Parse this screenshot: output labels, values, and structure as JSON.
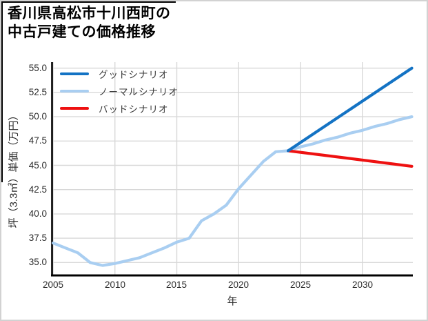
{
  "title": {
    "line1": "香川県高松市十川西町の",
    "line2": "中古戸建ての価格推移"
  },
  "chart_data": {
    "type": "line",
    "title": "香川県高松市十川西町の中古戸建ての価格推移",
    "xlabel": "年",
    "ylabel": "坪（3.3㎡）単価（万円）",
    "xlim": [
      2005,
      2034
    ],
    "ylim": [
      33.6,
      55.6
    ],
    "grid": true,
    "legend_position": "upper-left",
    "x_ticks": [
      2005,
      2010,
      2015,
      2020,
      2025,
      2030
    ],
    "x_tick_labels": [
      "2005",
      "2010",
      "2015",
      "2020",
      "2025",
      "2030"
    ],
    "y_ticks": [
      35.0,
      37.5,
      40.0,
      42.5,
      45.0,
      47.5,
      50.0,
      52.5,
      55.0
    ],
    "y_tick_labels": [
      "35.0",
      "37.5",
      "40.0",
      "42.5",
      "45.0",
      "47.5",
      "50.0",
      "52.5",
      "55.0"
    ],
    "colors": {
      "good": "#1473c4",
      "normal": "#a9cef1",
      "bad": "#ee1111",
      "grid": "#d8d8d8",
      "axis": "#000000"
    },
    "legend": [
      {
        "key": "good",
        "label": "グッドシナリオ",
        "color": "#1473c4"
      },
      {
        "key": "normal",
        "label": "ノーマルシナリオ",
        "color": "#a9cef1"
      },
      {
        "key": "bad",
        "label": "バッドシナリオ",
        "color": "#ee1111"
      }
    ],
    "series": [
      {
        "key": "normal",
        "name": "ノーマルシナリオ",
        "color": "#a9cef1",
        "x": [
          2005,
          2006,
          2007,
          2008,
          2009,
          2010,
          2011,
          2012,
          2013,
          2014,
          2015,
          2016,
          2017,
          2018,
          2019,
          2020,
          2021,
          2022,
          2023,
          2024,
          2025,
          2026,
          2027,
          2028,
          2029,
          2030,
          2031,
          2032,
          2033,
          2034
        ],
        "values": [
          37.0,
          36.5,
          36.0,
          35.0,
          34.7,
          34.9,
          35.2,
          35.5,
          36.0,
          36.5,
          37.1,
          37.5,
          39.3,
          40.0,
          40.9,
          42.6,
          44.0,
          45.4,
          46.4,
          46.5,
          46.9,
          47.2,
          47.6,
          47.9,
          48.3,
          48.6,
          49.0,
          49.3,
          49.7,
          50.0
        ]
      },
      {
        "key": "bad",
        "name": "バッドシナリオ",
        "color": "#ee1111",
        "x": [
          2024,
          2034
        ],
        "values": [
          46.5,
          44.9
        ]
      },
      {
        "key": "good",
        "name": "グッドシナリオ",
        "color": "#1473c4",
        "x": [
          2024,
          2034
        ],
        "values": [
          46.5,
          55.0
        ]
      }
    ]
  }
}
